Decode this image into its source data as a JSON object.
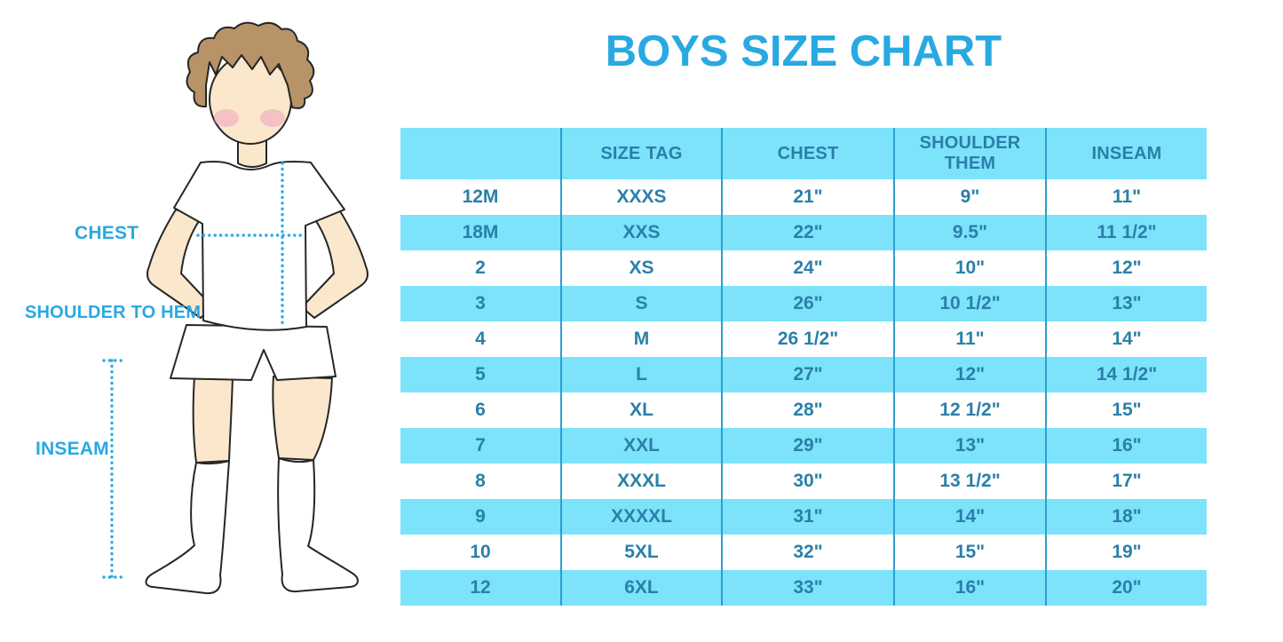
{
  "title": "BOYS SIZE CHART",
  "figure": {
    "labels": {
      "chest": "CHEST",
      "shoulder_to_hem": "SHOULDER TO HEM",
      "inseam": "INSEAM"
    }
  },
  "chart_data": {
    "type": "table",
    "title": "BOYS SIZE CHART",
    "columns": [
      "",
      "SIZE TAG",
      "CHEST",
      "SHOULDER THEM",
      "INSEAM"
    ],
    "rows": [
      [
        "12M",
        "XXXS",
        "21\"",
        "9\"",
        "11\""
      ],
      [
        "18M",
        "XXS",
        "22\"",
        "9.5\"",
        "11 1/2\""
      ],
      [
        "2",
        "XS",
        "24\"",
        "10\"",
        "12\""
      ],
      [
        "3",
        "S",
        "26\"",
        "10 1/2\"",
        "13\""
      ],
      [
        "4",
        "M",
        "26 1/2\"",
        "11\"",
        "14\""
      ],
      [
        "5",
        "L",
        "27\"",
        "12\"",
        "14 1/2\""
      ],
      [
        "6",
        "XL",
        "28\"",
        "12 1/2\"",
        "15\""
      ],
      [
        "7",
        "XXL",
        "29\"",
        "13\"",
        "16\""
      ],
      [
        "8",
        "XXXL",
        "30\"",
        "13 1/2\"",
        "17\""
      ],
      [
        "9",
        "XXXXL",
        "31\"",
        "14\"",
        "18\""
      ],
      [
        "10",
        "5XL",
        "32\"",
        "15\"",
        "19\""
      ],
      [
        "12",
        "6XL",
        "33\"",
        "16\"",
        "20\""
      ]
    ]
  },
  "colors": {
    "accent_cyan": "#29A9E1",
    "stripe_blue": "#7CE3FB",
    "table_text": "#2A80A9",
    "divider_blue": "#2B9FD0",
    "skin": "#FBE7CB",
    "hair": "#B79367",
    "blush": "#F0A8BF"
  }
}
